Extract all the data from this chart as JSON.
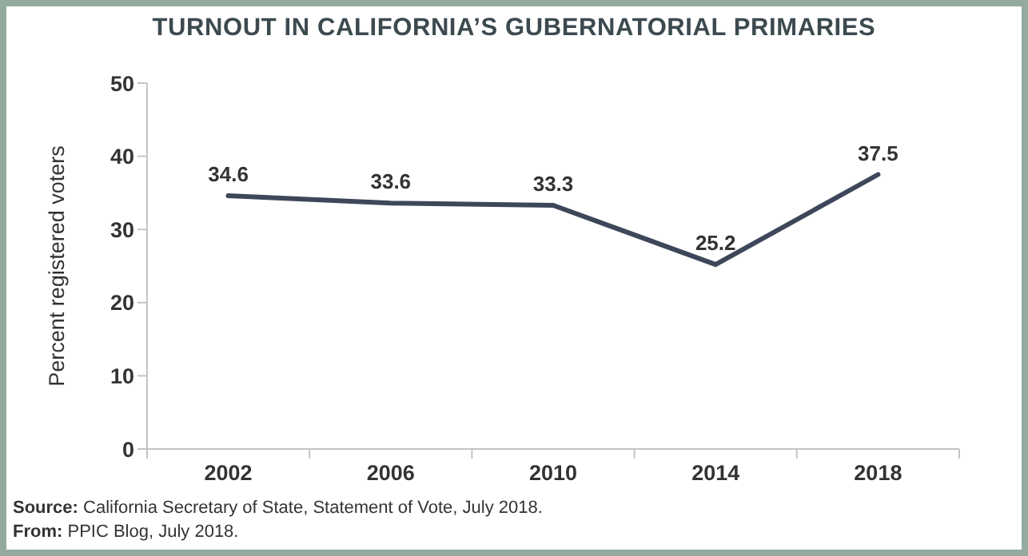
{
  "chart_data": {
    "type": "line",
    "title": "TURNOUT IN CALIFORNIA’S GUBERNATORIAL PRIMARIES",
    "ylabel": "Percent registered voters",
    "categories": [
      "2002",
      "2006",
      "2010",
      "2014",
      "2018"
    ],
    "series": [
      {
        "color": "#3d4759",
        "values": [
          34.6,
          33.6,
          33.3,
          25.2,
          37.5
        ]
      }
    ],
    "ylim": [
      0,
      50
    ],
    "yticks": [
      0,
      10,
      20,
      30,
      40,
      50
    ],
    "data_labels": true,
    "annotations": [
      "Source: California Secretary of State, Statement of Vote, July 2018.",
      "From: PPIC Blog, July 2018."
    ]
  }
}
